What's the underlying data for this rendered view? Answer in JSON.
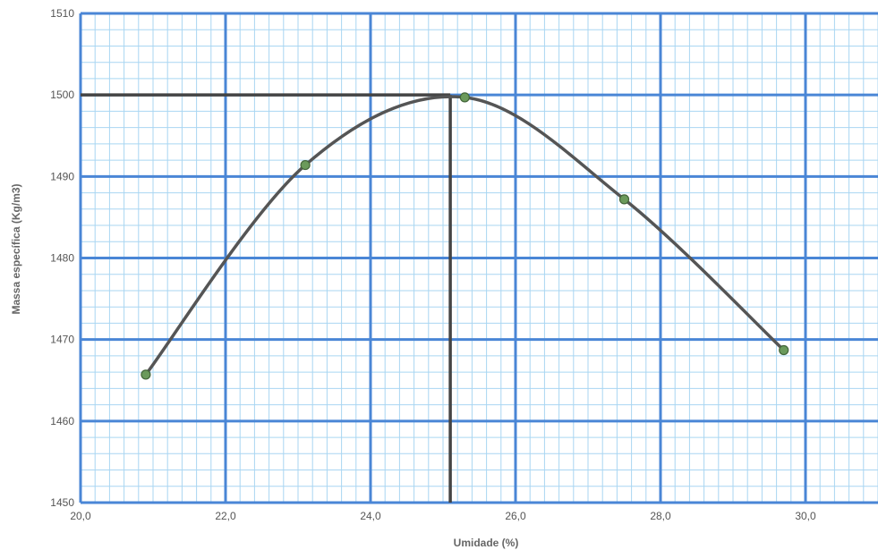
{
  "chart_data": {
    "type": "line",
    "title": "",
    "xlabel": "Umidade (%)",
    "ylabel": "Massa específica (Kg/m3)",
    "xlim": [
      20.0,
      31.0
    ],
    "ylim": [
      1450,
      1510
    ],
    "x_ticks": [
      20.0,
      22.0,
      24.0,
      26.0,
      28.0,
      30.0
    ],
    "x_tick_labels": [
      "20,0",
      "22,0",
      "24,0",
      "26,0",
      "28,0",
      "30,0"
    ],
    "y_ticks": [
      1450,
      1460,
      1470,
      1480,
      1490,
      1500,
      1510
    ],
    "y_tick_labels": [
      "1450",
      "1460",
      "1470",
      "1480",
      "1490",
      "1500",
      "1510"
    ],
    "grid": "major and minor",
    "legend": "none",
    "series": [
      {
        "x": [
          20.9,
          23.1,
          25.3,
          27.5,
          29.7
        ],
        "y": [
          1465.7,
          1491.4,
          1499.7,
          1487.2,
          1468.7
        ],
        "smooth": true,
        "marker": "circle"
      }
    ],
    "reference_lines": {
      "x": 25.1,
      "y": 1500
    },
    "colors": {
      "major_grid": "#4a86d6",
      "minor_grid": "#a9d6f2",
      "curve": "#555555",
      "marker_fill": "#6b9a5b",
      "marker_stroke": "#44663a",
      "reference": "#444444"
    }
  }
}
